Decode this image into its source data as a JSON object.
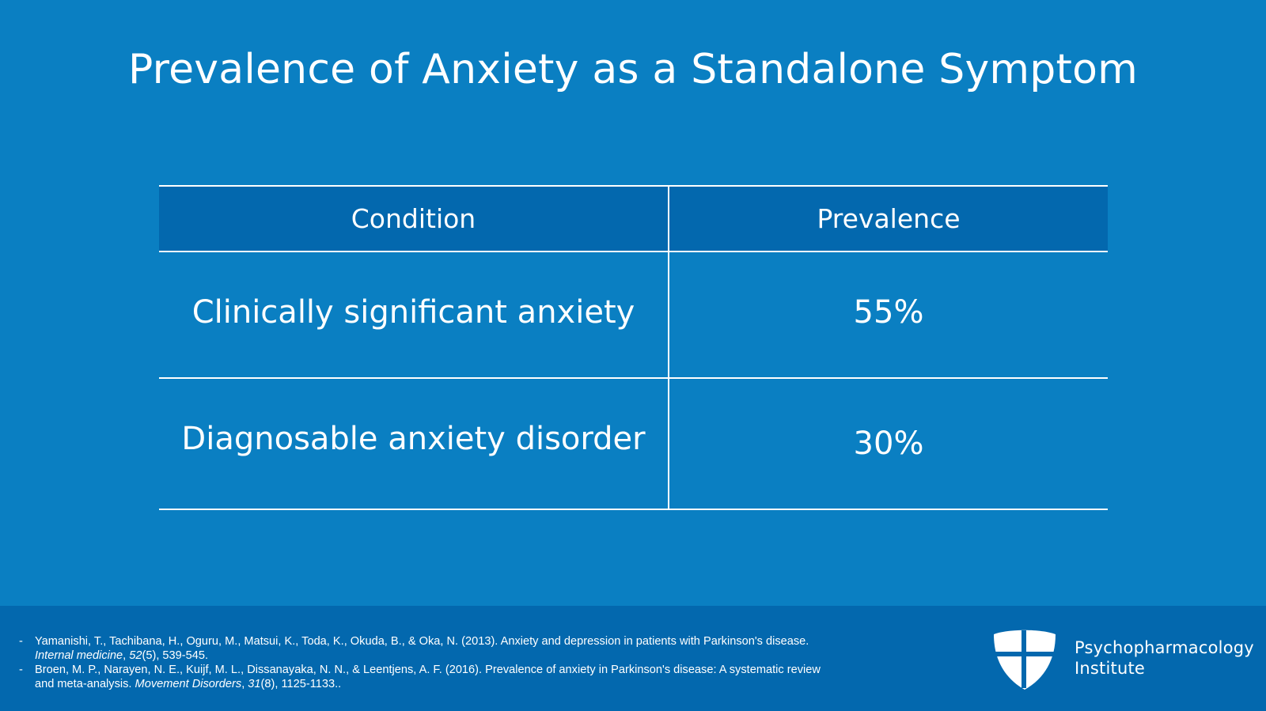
{
  "slide": {
    "title": "Prevalence of Anxiety as a Standalone Symptom"
  },
  "table": {
    "headers": [
      "Condition",
      "Prevalence"
    ],
    "rows": [
      {
        "condition": "Clinically significant anxiety",
        "prevalence": "55%"
      },
      {
        "condition": "Diagnosable anxiety disorder",
        "prevalence": "30%"
      }
    ]
  },
  "references": [
    {
      "bullet": "-",
      "before": "Yamanishi, T., Tachibana, H., Oguru, M., Matsui, K., Toda, K., Okuda, B., & Oka, N. (2013). Anxiety and depression in patients with Parkinson's disease. ",
      "journal": "Internal medicine",
      "sep": ", ",
      "volume": "52",
      "after": "(5), 539-545."
    },
    {
      "bullet": "-",
      "before": "Broen, M. P., Narayen, N. E., Kuijf, M. L., Dissanayaka, N. N., & Leentjens, A. F. (2016). Prevalence of anxiety in Parkinson's disease: A systematic review and meta-analysis. ",
      "journal": "Movement Disorders",
      "sep": ", ",
      "volume": "31",
      "after": "(8), 1125-1133.."
    }
  ],
  "branding": {
    "logo_icon": "shield-cross-icon",
    "name_line1": "Psychopharmacology",
    "name_line2": "Institute"
  },
  "colors": {
    "background": "#0a7fc2",
    "header_band": "#0368ae",
    "text": "#ffffff"
  }
}
